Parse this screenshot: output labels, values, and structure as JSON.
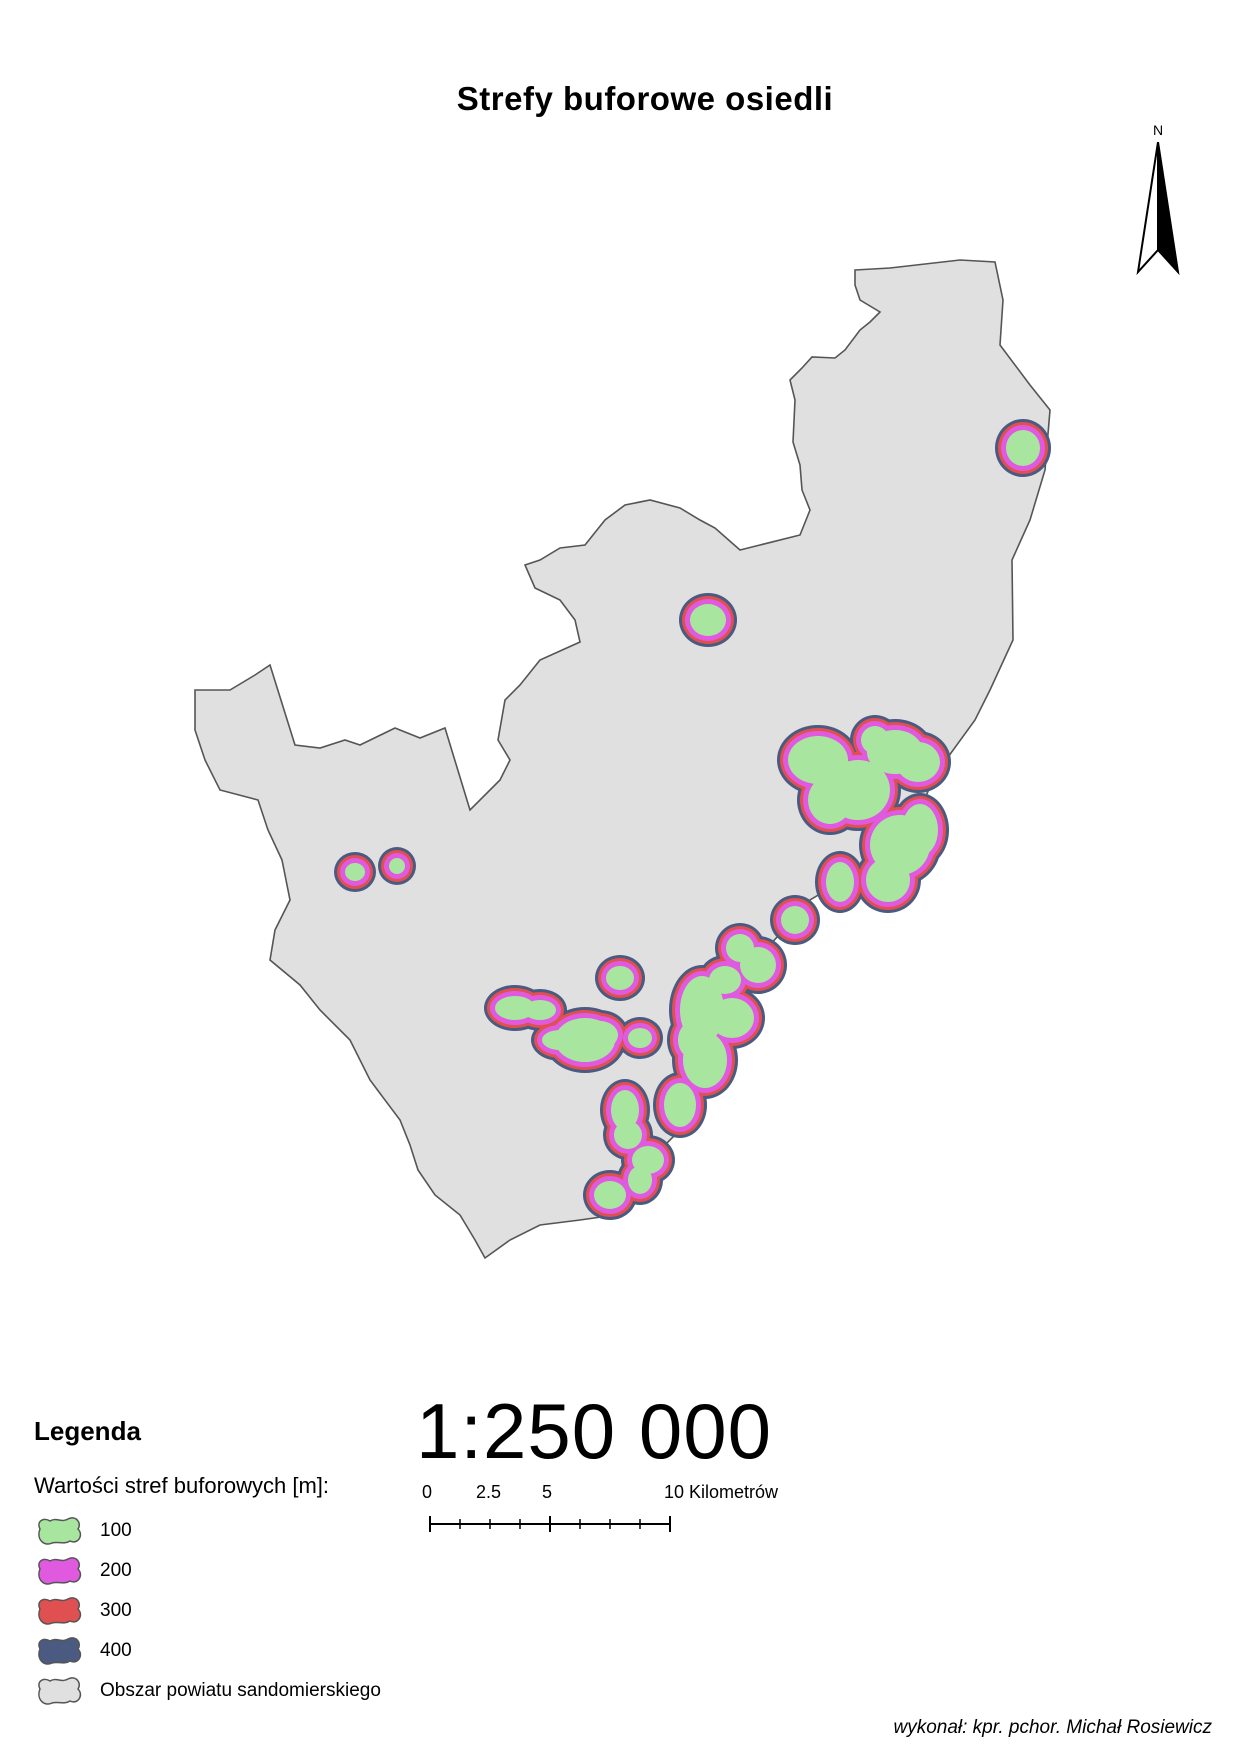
{
  "map": {
    "title": "Strefy buforowe osiedli",
    "north_label": "N",
    "scale_ratio": "1:250 000",
    "scalebar": {
      "labels": [
        "0",
        "2.5",
        "5",
        "10 Kilometrów"
      ]
    },
    "colors": {
      "buffer_100": "#a8e6a0",
      "buffer_200": "#e05ae0",
      "buffer_300": "#e05050",
      "buffer_400": "#4a5a80",
      "county": "#e0e0e0",
      "outline": "#555555"
    },
    "legend": {
      "title": "Legenda",
      "subtitle": "Wartości stref buforowych [m]:",
      "items": [
        {
          "label": "100",
          "color": "#a8e6a0"
        },
        {
          "label": "200",
          "color": "#e05ae0"
        },
        {
          "label": "300",
          "color": "#e05050"
        },
        {
          "label": "400",
          "color": "#4a5a80"
        },
        {
          "label": "Obszar powiatu sandomierskiego",
          "color": "#e0e0e0"
        }
      ]
    },
    "author": "wykonał: kpr. pchor. Michał Rosiewicz"
  }
}
